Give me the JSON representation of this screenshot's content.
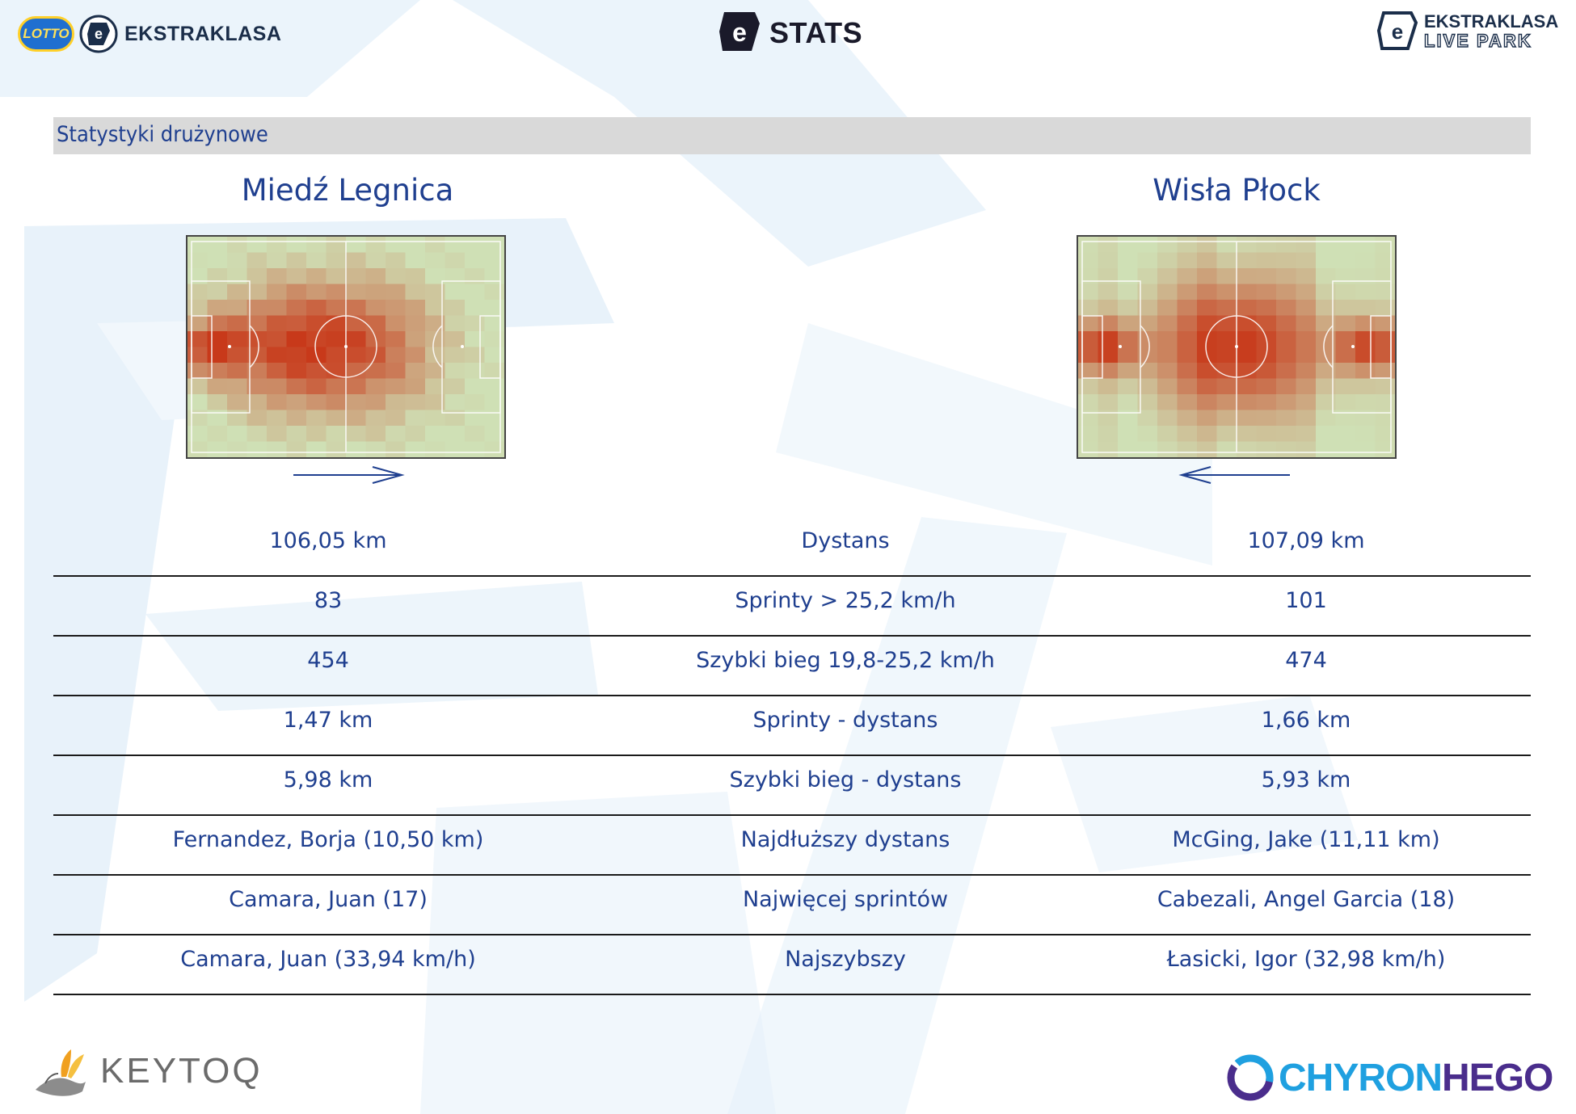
{
  "header": {
    "left_badge": "LOTTO",
    "left_brand": "EKSTRAKLASA",
    "center_brand": "STATS",
    "right_brand_line1": "EKSTRAKLASA",
    "right_brand_line2": "LIVE PARK"
  },
  "section": {
    "title": "Statystyki drużynowe"
  },
  "teams": {
    "home": {
      "name": "Miedź Legnica",
      "attack_direction": "right"
    },
    "away": {
      "name": "Wisła Płock",
      "attack_direction": "left"
    }
  },
  "stats": [
    {
      "home": "106,05 km",
      "label": "Dystans",
      "away": "107,09 km"
    },
    {
      "home": "83",
      "label": "Sprinty > 25,2 km/h",
      "away": "101"
    },
    {
      "home": "454",
      "label": "Szybki bieg 19,8-25,2 km/h",
      "away": "474"
    },
    {
      "home": "1,47 km",
      "label": "Sprinty - dystans",
      "away": "1,66 km"
    },
    {
      "home": "5,98 km",
      "label": "Szybki bieg - dystans",
      "away": "5,93 km"
    },
    {
      "home": "Fernandez, Borja (10,50 km)",
      "label": "Najdłuższy dystans",
      "away": "McGing, Jake (11,11 km)"
    },
    {
      "home": "Camara, Juan (17)",
      "label": "Najwięcej sprintów",
      "away": "Cabezali, Angel Garcia (18)"
    },
    {
      "home": "Camara, Juan (33,94 km/h)",
      "label": "Najszybszy",
      "away": "Łasicki, Igor (32,98 km/h)"
    }
  ],
  "footer": {
    "left_brand": "KEYTOQ",
    "right_brand_part1": "CHYRON",
    "right_brand_part2": "HEGO"
  },
  "colors": {
    "text_blue": "#1f3f8f",
    "heat_high": "#c8391a",
    "pitch_base": "#cfe0b5",
    "section_bar": "#d9d9d9"
  }
}
